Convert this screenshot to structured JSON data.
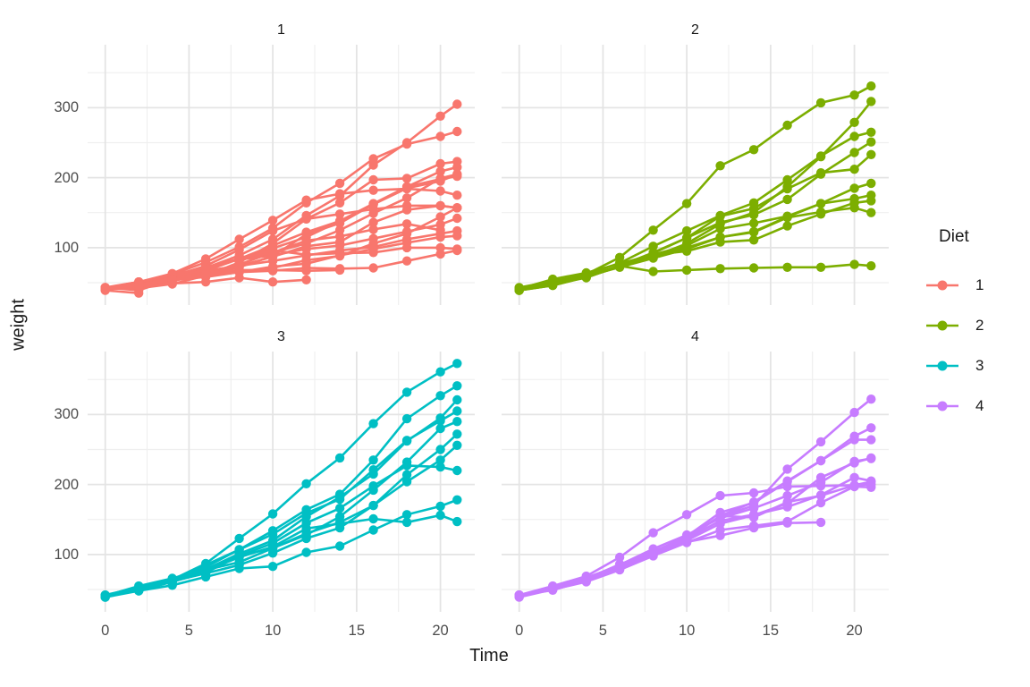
{
  "chart_data": {
    "type": "line",
    "title": "",
    "xlabel": "Time",
    "ylabel": "weight",
    "x_ticks": [
      0,
      5,
      10,
      15,
      20
    ],
    "x_minor": [
      2.5,
      7.5,
      12.5,
      17.5
    ],
    "y_ticks": [
      100,
      200,
      300
    ],
    "y_minor": [
      50,
      150,
      250,
      350
    ],
    "xlim": [
      -1.05,
      22.05
    ],
    "ylim": [
      18,
      390
    ],
    "grid": "on",
    "legend_position": "right",
    "colors": {
      "grid_major": "#E4E4E4",
      "grid_minor": "#EFEFEF",
      "tick_text": "#4D4D4D",
      "title_text": "#1A1A1A"
    },
    "legend": {
      "title": "Diet",
      "items": [
        {
          "label": "1",
          "color": "#F8766D"
        },
        {
          "label": "2",
          "color": "#7CAE00"
        },
        {
          "label": "3",
          "color": "#00BFC4"
        },
        {
          "label": "4",
          "color": "#C77CFF"
        }
      ]
    },
    "times": [
      0,
      2,
      4,
      6,
      8,
      10,
      12,
      14,
      16,
      18,
      20,
      21
    ],
    "facets": [
      {
        "label": "1",
        "color": "#F8766D",
        "series": [
          [
            42,
            51,
            59,
            64,
            76,
            93,
            106,
            125,
            149,
            171,
            199,
            205
          ],
          [
            40,
            49,
            58,
            72,
            84,
            103,
            122,
            138,
            162,
            187,
            209,
            215
          ],
          [
            43,
            39,
            55,
            67,
            84,
            99,
            115,
            138,
            163,
            187,
            198,
            202
          ],
          [
            42,
            49,
            56,
            67,
            74,
            87,
            102,
            108,
            136,
            154,
            160,
            157
          ],
          [
            41,
            42,
            48,
            60,
            79,
            106,
            141,
            164,
            197,
            199,
            220,
            223
          ],
          [
            41,
            49,
            59,
            74,
            97,
            124,
            141,
            148,
            155,
            160,
            160,
            157
          ],
          [
            41,
            49,
            57,
            71,
            89,
            112,
            146,
            174,
            218,
            250,
            288,
            305
          ],
          [
            42,
            50,
            61,
            71,
            84,
            93,
            110,
            116,
            126,
            134,
            125
          ],
          [
            42,
            51,
            59,
            68,
            85,
            96,
            90,
            92,
            93,
            100,
            100,
            98
          ],
          [
            41,
            44,
            52,
            63,
            74,
            81,
            89,
            96,
            101,
            112,
            120,
            124
          ],
          [
            43,
            51,
            63,
            84,
            112,
            139,
            168,
            177,
            182,
            184,
            181,
            175
          ],
          [
            41,
            49,
            56,
            62,
            72,
            88,
            119,
            135,
            162,
            185,
            195,
            205
          ],
          [
            41,
            48,
            53,
            60,
            65,
            67,
            71,
            70,
            71,
            81,
            91,
            96
          ],
          [
            41,
            49,
            62,
            79,
            101,
            128,
            164,
            192,
            227,
            248,
            259,
            266
          ],
          [
            41,
            49,
            56,
            64,
            68,
            68,
            67,
            68
          ],
          [
            41,
            45,
            49,
            51,
            57,
            51,
            54
          ],
          [
            42,
            51,
            61,
            72,
            83,
            89,
            98,
            103,
            113,
            123,
            133,
            142
          ],
          [
            39,
            35
          ],
          [
            43,
            48,
            55,
            62,
            65,
            71,
            82,
            88,
            106,
            120,
            144,
            157
          ],
          [
            41,
            47,
            54,
            58,
            65,
            73,
            77,
            89,
            98,
            107,
            115,
            117
          ]
        ]
      },
      {
        "label": "2",
        "color": "#7CAE00",
        "series": [
          [
            40,
            50,
            62,
            86,
            125,
            163,
            217,
            240,
            275,
            307,
            318,
            331
          ],
          [
            41,
            55,
            64,
            77,
            90,
            95,
            108,
            111,
            131,
            148,
            164,
            167
          ],
          [
            43,
            52,
            61,
            73,
            90,
            103,
            127,
            135,
            145,
            163,
            170,
            175
          ],
          [
            42,
            52,
            58,
            74,
            66,
            68,
            70,
            71,
            72,
            72,
            76,
            74
          ],
          [
            40,
            49,
            62,
            78,
            102,
            124,
            146,
            164,
            197,
            231,
            259,
            265
          ],
          [
            42,
            48,
            57,
            74,
            93,
            114,
            136,
            147,
            169,
            205,
            236,
            251
          ],
          [
            39,
            46,
            58,
            73,
            87,
            100,
            115,
            123,
            144,
            163,
            185,
            192
          ],
          [
            39,
            46,
            58,
            73,
            92,
            114,
            145,
            156,
            184,
            207,
            212,
            233
          ],
          [
            39,
            48,
            59,
            74,
            87,
            106,
            134,
            150,
            187,
            230,
            279,
            309
          ],
          [
            42,
            48,
            59,
            72,
            85,
            98,
            115,
            122,
            143,
            151,
            157,
            150
          ]
        ]
      },
      {
        "label": "3",
        "color": "#00BFC4",
        "series": [
          [
            42,
            53,
            62,
            73,
            85,
            102,
            123,
            138,
            170,
            204,
            235,
            256
          ],
          [
            41,
            49,
            65,
            82,
            107,
            129,
            159,
            179,
            221,
            263,
            291,
            305
          ],
          [
            39,
            50,
            63,
            77,
            96,
            111,
            137,
            144,
            151,
            146,
            156,
            147
          ],
          [
            41,
            49,
            63,
            85,
            107,
            134,
            164,
            186,
            235,
            294,
            327,
            341
          ],
          [
            41,
            53,
            64,
            87,
            123,
            158,
            201,
            238,
            287,
            332,
            361,
            373
          ],
          [
            39,
            48,
            61,
            76,
            98,
            116,
            145,
            166,
            198,
            227,
            225,
            220
          ],
          [
            41,
            48,
            56,
            68,
            80,
            83,
            103,
            112,
            135,
            157,
            169,
            178
          ],
          [
            41,
            49,
            61,
            74,
            98,
            109,
            128,
            154,
            192,
            232,
            280,
            290
          ],
          [
            42,
            50,
            61,
            78,
            89,
            109,
            130,
            146,
            170,
            214,
            250,
            272
          ],
          [
            41,
            55,
            66,
            79,
            101,
            120,
            154,
            182,
            215,
            262,
            295,
            321
          ]
        ]
      },
      {
        "label": "4",
        "color": "#C77CFF",
        "series": [
          [
            42,
            51,
            66,
            85,
            103,
            124,
            155,
            153,
            175,
            184,
            199,
            204
          ],
          [
            42,
            49,
            63,
            84,
            103,
            126,
            160,
            174,
            204,
            234,
            269,
            281
          ],
          [
            42,
            55,
            69,
            96,
            131,
            157,
            184,
            188,
            197,
            198,
            199,
            200
          ],
          [
            42,
            51,
            65,
            86,
            103,
            118,
            127,
            138,
            145,
            146
          ],
          [
            41,
            50,
            61,
            78,
            98,
            117,
            135,
            141,
            147,
            174,
            197,
            196
          ],
          [
            40,
            52,
            62,
            82,
            101,
            120,
            144,
            156,
            173,
            210,
            231,
            238
          ],
          [
            41,
            53,
            66,
            79,
            100,
            123,
            148,
            157,
            168,
            185,
            210,
            205
          ],
          [
            39,
            50,
            62,
            80,
            104,
            125,
            154,
            170,
            222,
            261,
            303,
            322
          ],
          [
            40,
            53,
            64,
            85,
            108,
            128,
            152,
            166,
            184,
            203,
            233,
            237
          ],
          [
            41,
            54,
            67,
            84,
            105,
            122,
            155,
            175,
            205,
            234,
            264,
            264
          ]
        ]
      }
    ]
  }
}
